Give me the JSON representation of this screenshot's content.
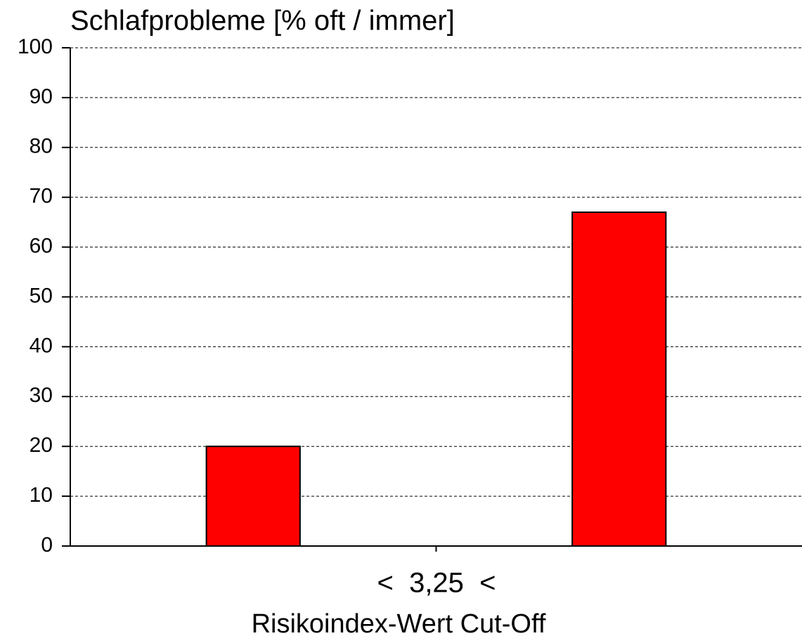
{
  "chart_data": {
    "type": "bar",
    "title": "Schlafprobleme [% oft / immer]",
    "categories": [
      null,
      null
    ],
    "values": [
      20,
      67
    ],
    "color": "#ff0000",
    "annotation": "<  3,25  <",
    "x_label": "Risikoindex-Wert Cut-Off",
    "ylim": [
      0,
      100
    ],
    "yticks": [
      0,
      10,
      20,
      30,
      40,
      50,
      60,
      70,
      80,
      90,
      100
    ],
    "grid": true
  }
}
